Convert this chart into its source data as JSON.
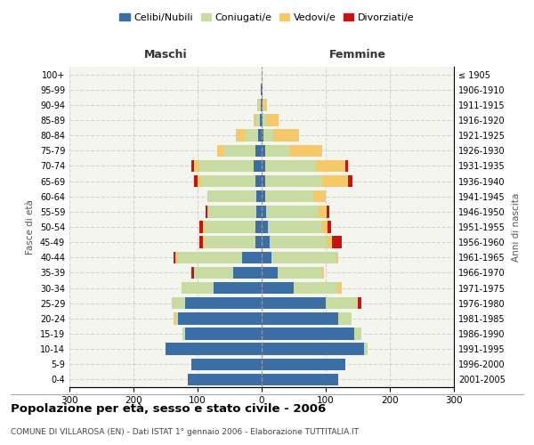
{
  "age_groups": [
    "0-4",
    "5-9",
    "10-14",
    "15-19",
    "20-24",
    "25-29",
    "30-34",
    "35-39",
    "40-44",
    "45-49",
    "50-54",
    "55-59",
    "60-64",
    "65-69",
    "70-74",
    "75-79",
    "80-84",
    "85-89",
    "90-94",
    "95-99",
    "100+"
  ],
  "birth_years": [
    "2001-2005",
    "1996-2000",
    "1991-1995",
    "1986-1990",
    "1981-1985",
    "1976-1980",
    "1971-1975",
    "1966-1970",
    "1961-1965",
    "1956-1960",
    "1951-1955",
    "1946-1950",
    "1941-1945",
    "1936-1940",
    "1931-1935",
    "1926-1930",
    "1921-1925",
    "1916-1920",
    "1911-1915",
    "1906-1910",
    "≤ 1905"
  ],
  "maschi": {
    "celibi": [
      115,
      110,
      150,
      120,
      130,
      120,
      75,
      45,
      30,
      10,
      10,
      8,
      8,
      10,
      12,
      10,
      5,
      3,
      2,
      1,
      0
    ],
    "coniugati": [
      0,
      0,
      0,
      3,
      5,
      20,
      50,
      60,
      100,
      80,
      80,
      75,
      75,
      85,
      85,
      50,
      20,
      5,
      3,
      0,
      0
    ],
    "vedovi": [
      0,
      0,
      0,
      0,
      3,
      0,
      0,
      0,
      5,
      2,
      2,
      2,
      2,
      5,
      8,
      10,
      15,
      5,
      2,
      0,
      0
    ],
    "divorziati": [
      0,
      0,
      0,
      0,
      0,
      0,
      0,
      5,
      2,
      5,
      5,
      3,
      0,
      5,
      5,
      0,
      0,
      0,
      0,
      0,
      0
    ]
  },
  "femmine": {
    "nubili": [
      120,
      130,
      160,
      145,
      120,
      100,
      50,
      25,
      15,
      12,
      10,
      7,
      5,
      5,
      5,
      5,
      3,
      2,
      1,
      1,
      0
    ],
    "coniugate": [
      0,
      0,
      5,
      10,
      20,
      50,
      70,
      70,
      100,
      90,
      85,
      80,
      75,
      90,
      80,
      40,
      15,
      5,
      2,
      0,
      0
    ],
    "vedove": [
      0,
      0,
      0,
      0,
      0,
      0,
      5,
      2,
      5,
      8,
      8,
      15,
      20,
      40,
      45,
      50,
      40,
      20,
      5,
      1,
      0
    ],
    "divorziate": [
      0,
      0,
      0,
      0,
      0,
      5,
      0,
      0,
      0,
      15,
      5,
      3,
      0,
      7,
      5,
      0,
      0,
      0,
      0,
      0,
      0
    ]
  },
  "colors": {
    "celibi": "#3a6ea5",
    "coniugati": "#c8dba0",
    "vedovi": "#f5c96a",
    "divorziati": "#cc1111"
  },
  "xlim": 300,
  "title": "Popolazione per età, sesso e stato civile - 2006",
  "subtitle": "COMUNE DI VILLAROSA (EN) - Dati ISTAT 1° gennaio 2006 - Elaborazione TUTTITALIA.IT",
  "ylabel": "Fasce di età",
  "ylabel_right": "Anni di nascita",
  "maschi_label": "Maschi",
  "femmine_label": "Femmine",
  "legend_labels": [
    "Celibi/Nubili",
    "Coniugati/e",
    "Vedovi/e",
    "Divorziati/e"
  ],
  "bg_color": "#f5f5f0"
}
